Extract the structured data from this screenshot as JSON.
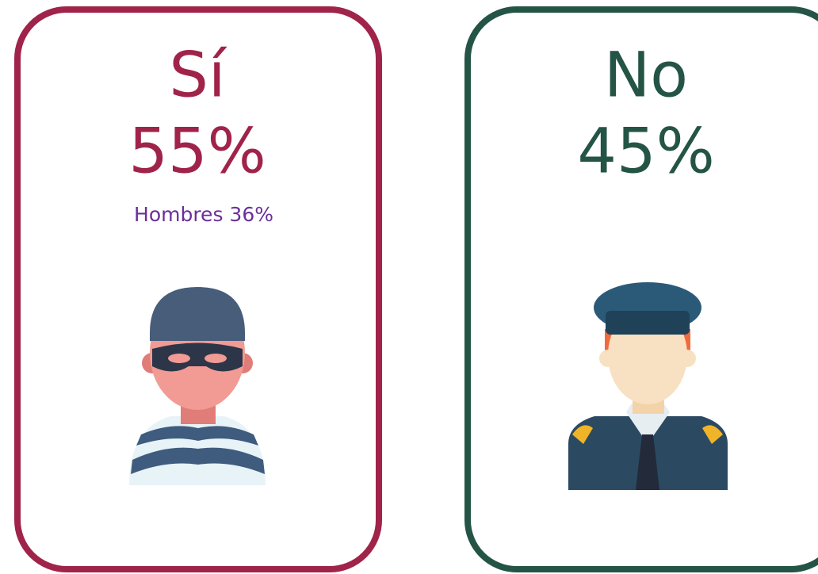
{
  "cards": [
    {
      "label": "Sí",
      "value": "55%",
      "note": "Hombres 36%"
    },
    {
      "label": "No",
      "value": "45%"
    }
  ]
}
